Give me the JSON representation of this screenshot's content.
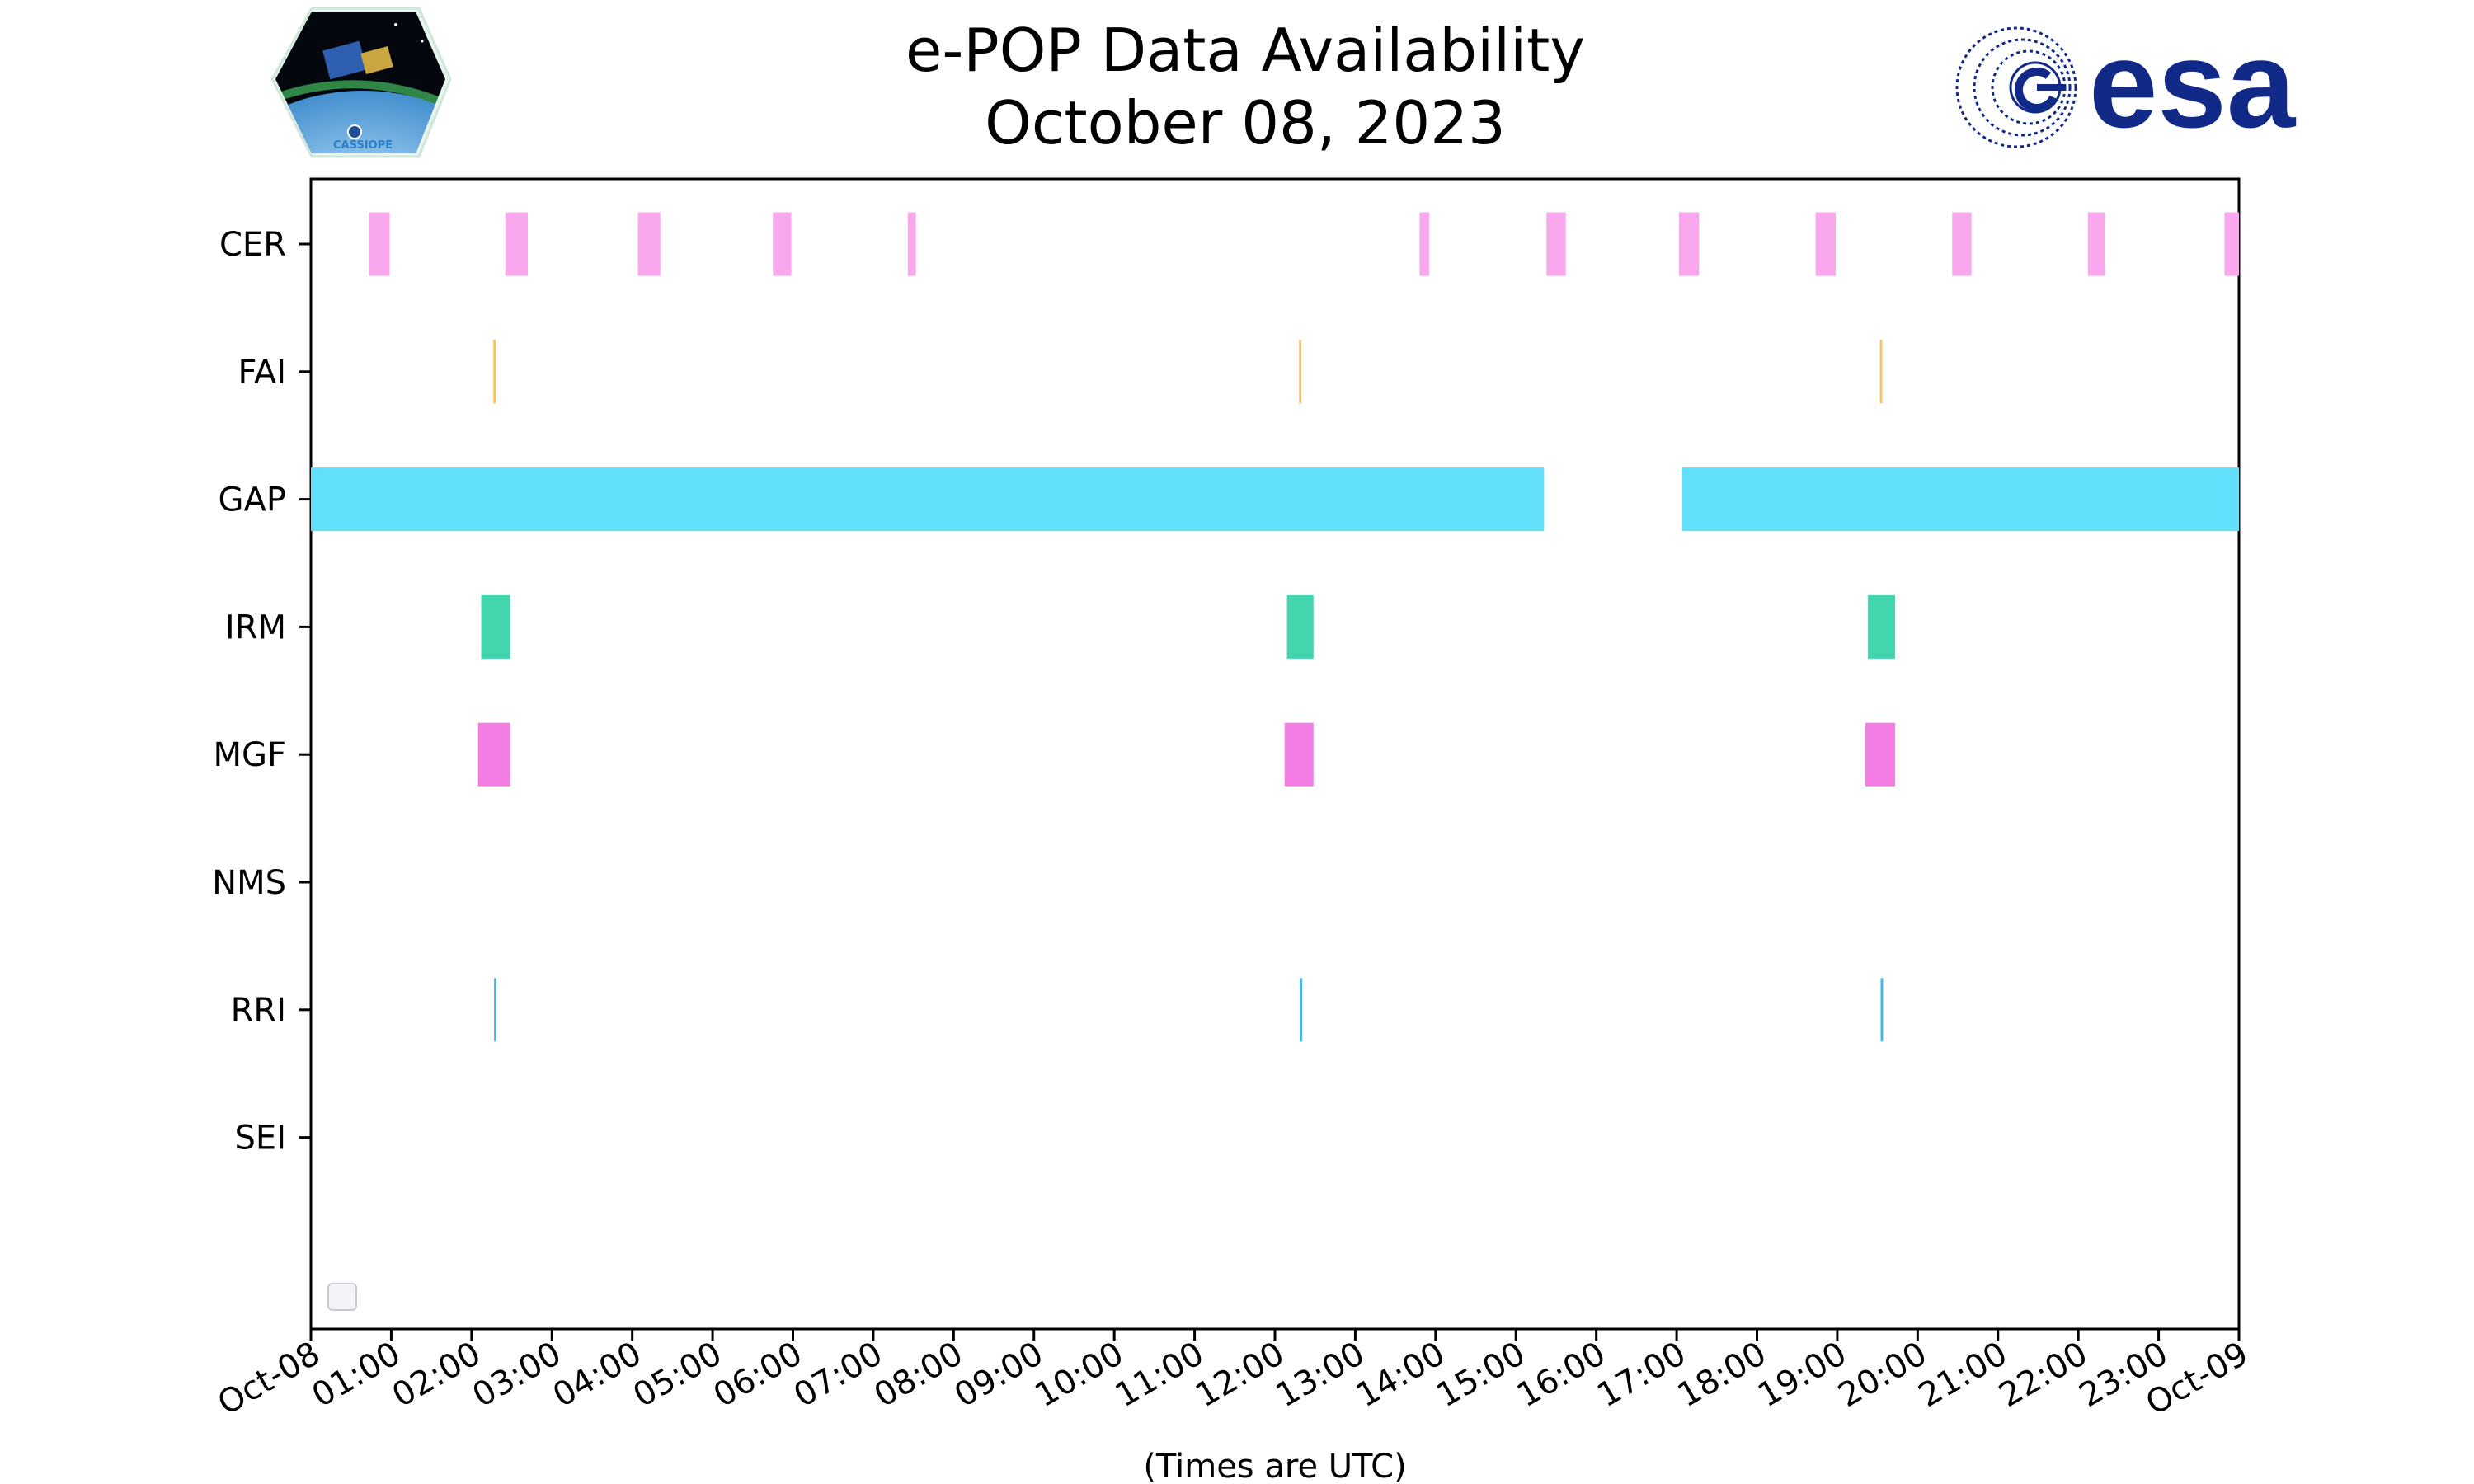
{
  "chart_data": {
    "type": "timeline",
    "title": "e-POP Data Availability",
    "subtitle": "October 08, 2023",
    "xlabel": "(Times are UTC)",
    "x_range_hours": [
      0,
      24
    ],
    "x_tick_labels": [
      "Oct-08",
      "01:00",
      "02:00",
      "03:00",
      "04:00",
      "05:00",
      "06:00",
      "07:00",
      "08:00",
      "09:00",
      "10:00",
      "11:00",
      "12:00",
      "13:00",
      "14:00",
      "15:00",
      "16:00",
      "17:00",
      "18:00",
      "19:00",
      "20:00",
      "21:00",
      "22:00",
      "23:00",
      "Oct-09"
    ],
    "grid": false,
    "legend": "bottom-left (empty)",
    "series": [
      {
        "name": "CER",
        "color": "#f9a8ee",
        "intervals": [
          [
            0.72,
            0.98
          ],
          [
            2.42,
            2.7
          ],
          [
            4.07,
            4.35
          ],
          [
            5.75,
            5.98
          ],
          [
            7.43,
            7.53
          ],
          [
            13.8,
            13.92
          ],
          [
            15.38,
            15.62
          ],
          [
            17.03,
            17.28
          ],
          [
            18.73,
            18.98
          ],
          [
            20.43,
            20.67
          ],
          [
            22.12,
            22.33
          ],
          [
            23.82,
            24.0
          ]
        ]
      },
      {
        "name": "FAI",
        "color": "#f5c46a",
        "intervals": [
          [
            2.27,
            2.3
          ],
          [
            12.3,
            12.33
          ],
          [
            19.53,
            19.56
          ]
        ]
      },
      {
        "name": "GAP",
        "color": "#62dffa",
        "intervals": [
          [
            0.0,
            15.35
          ],
          [
            17.07,
            24.0
          ]
        ]
      },
      {
        "name": "IRM",
        "color": "#43d6ae",
        "intervals": [
          [
            2.12,
            2.48
          ],
          [
            12.15,
            12.48
          ],
          [
            19.38,
            19.72
          ]
        ]
      },
      {
        "name": "MGF",
        "color": "#f27ee3",
        "intervals": [
          [
            2.08,
            2.48
          ],
          [
            12.12,
            12.48
          ],
          [
            19.35,
            19.72
          ]
        ]
      },
      {
        "name": "NMS",
        "color": "#888888",
        "intervals": []
      },
      {
        "name": "RRI",
        "color": "#42b8e8",
        "intervals": [
          [
            2.28,
            2.31
          ],
          [
            12.31,
            12.34
          ],
          [
            19.54,
            19.57
          ]
        ]
      },
      {
        "name": "SEI",
        "color": "#888888",
        "intervals": []
      }
    ]
  },
  "logos": {
    "left": {
      "name": "CASSIOPE mission logo",
      "text": "CASSIOPE"
    },
    "right": {
      "name": "ESA logo",
      "text": "esa",
      "color": "#112a87"
    }
  }
}
